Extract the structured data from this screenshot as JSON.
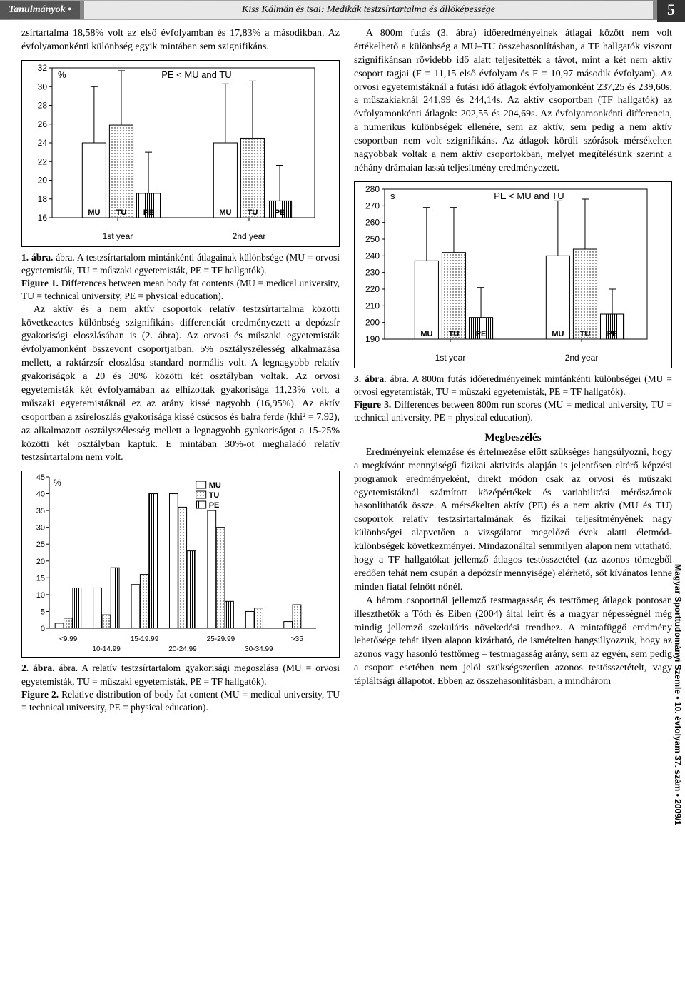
{
  "header": {
    "section_left": "Tanulmányok",
    "title": "Kiss Kálmán és tsai: Medikák testzsírtartalma és állóképessége",
    "page": "5"
  },
  "left_intro": "zsírtartalma 18,58% volt az első évfolyamban és 17,83% a másodikban. Az évfolyamonkénti különbség egyik mintában sem szignifikáns.",
  "fig1": {
    "type": "bar",
    "ylabel": "%",
    "annotation": "PE < MU and TU",
    "y_min": 16,
    "y_max": 32,
    "y_step": 2,
    "groups": [
      "1st year",
      "2nd year"
    ],
    "series": [
      "MU",
      "TU",
      "PE"
    ],
    "values": [
      [
        24.0,
        25.9,
        18.6
      ],
      [
        24.0,
        24.5,
        17.8
      ]
    ],
    "err": [
      [
        6.0,
        5.8,
        4.4
      ],
      [
        6.3,
        6.1,
        3.8
      ]
    ],
    "fills": [
      "white",
      "dots",
      "vstripe"
    ],
    "border_color": "#000000",
    "bg": "#ffffff"
  },
  "caption1_hu": "1. ábra. A testzsírtartalom mintánkénti átlagainak különbsége (MU = orvosi egyetemisták, TU = műszaki egyetemisták, PE = TF hallgatók).",
  "caption1_en": "Figure 1. Differences between mean body fat contents (MU = medical university, TU = technical university, PE = physical education).",
  "left_para2": "Az aktív és a nem aktív csoportok relatív testzsírtartalma közötti következetes különbség szignifikáns differenciát eredményezett a depózsír gyakorisági eloszlásában is (2. ábra). Az orvosi és műszaki egyetemisták évfolyamonként összevont csoportjaiban, 5% osztályszélesség alkalmazása mellett, a raktárzsír eloszlása standard normális volt. A legnagyobb relatív gyakoriságok a 20 és 30% közötti két osztályban voltak. Az orvosi egyetemisták két évfolyamában az elhízottak gyakorisága 11,23% volt, a műszaki egyetemistáknál ez az arány kissé nagyobb (16,95%). Az aktív csoportban a zsíreloszlás gyakorisága kissé csúcsos és balra ferde (khi² = 7,92), az alkalmazott osztályszélesség mellett a legnagyobb gyakoriságot a 15-25% közötti két osztályban kaptuk. E mintában 30%-ot meghaladó relatív testzsírtartalom nem volt.",
  "fig2": {
    "type": "grouped-bar",
    "ylabel": "%",
    "y_min": 0,
    "y_max": 45,
    "y_step": 5,
    "categories": [
      "<9.99",
      "10-14.99",
      "15-19.99",
      "20-24.99",
      "25-29.99",
      "30-34.99",
      ">35"
    ],
    "legend": [
      "MU",
      "TU",
      "PE"
    ],
    "values": [
      [
        1.5,
        3,
        12
      ],
      [
        12,
        4,
        18
      ],
      [
        13,
        16,
        40
      ],
      [
        40,
        36,
        23
      ],
      [
        35,
        30,
        8
      ],
      [
        5,
        6,
        0
      ],
      [
        2,
        7,
        0
      ]
    ],
    "fills": [
      "white",
      "dots",
      "vstripe"
    ],
    "border_color": "#000000"
  },
  "caption2_hu": "2. ábra. A relatív testzsírtartalom gyakorisági megoszlása (MU = orvosi egyetemisták, TU = műszaki egyetemisták, PE = TF hallgatók).",
  "caption2_en": "Figure 2. Relative distribution of body fat content (MU = medical university, TU = technical university, PE = physical education).",
  "right_para1": "A 800m futás (3. ábra) időeredményeinek átlagai között nem volt értékelhető a különbség a MU–TU összehasonlításban, a TF hallgatók viszont szignifikánsan rövidebb idő alatt teljesítették a távot, mint a két nem aktív csoport tagjai (F = 11,15 első évfolyam és F = 10,97 második évfolyam). Az orvosi egyetemistáknál a futási idő átlagok évfolyamonként 237,25 és 239,60s, a műszakiaknál 241,99 és 244,14s. Az aktív csoportban (TF hallgatók) az évfolyamonkénti átlagok: 202,55 és 204,69s. Az évfolyamonkénti differencia, a numerikus különbségek ellenére, sem az aktív, sem pedig a nem aktív csoportban nem volt szignifikáns. Az átlagok körüli szórások mérsékelten nagyobbak voltak a nem aktív csoportokban, melyet megítélésünk szerint a néhány drámaian lassú teljesítmény eredményezett.",
  "fig3": {
    "type": "bar",
    "ylabel": "s",
    "annotation": "PE < MU and TU",
    "y_min": 190,
    "y_max": 280,
    "y_step": 10,
    "groups": [
      "1st year",
      "2nd year"
    ],
    "series": [
      "MU",
      "TU",
      "PE"
    ],
    "values": [
      [
        237,
        242,
        203
      ],
      [
        240,
        244,
        205
      ]
    ],
    "err": [
      [
        32,
        27,
        18
      ],
      [
        33,
        30,
        15
      ]
    ],
    "fills": [
      "white",
      "dots",
      "vstripe"
    ],
    "border_color": "#000000"
  },
  "caption3_hu": "3. ábra. A 800m futás időeredményeinek mintánkénti különbségei (MU = orvosi egyetemisták, TU = műszaki egyetemisták, PE = TF hallgatók).",
  "caption3_en": "Figure 3. Differences between 800m run scores (MU = medical university, TU = technical university, PE = physical education).",
  "discussion_head": "Megbeszélés",
  "right_para2": "Eredményeink elemzése és értelmezése előtt szükséges hangsúlyozni, hogy a megkívánt mennyiségű fizikai aktivitás alapján is jelentősen eltérő képzési programok eredményeként, direkt módon csak az orvosi és műszaki egyetemistáknál számított középértékek és variabilitási mérőszámok hasonlíthatók össze. A mérsékelten aktív (PE) és a nem aktív (MU és TU) csoportok relatív testzsírtartalmának és fizikai teljesítményének nagy különbségei alapvetően a vizsgálatot megelőző évek alatti életmód-különbségek következményei. Mindazonáltal semmilyen alapon nem vitatható, hogy a TF hallgatókat jellemző átlagos testösszetétel (az azonos tömegből eredően tehát nem csupán a depózsír mennyisége) elérhető, sőt kívánatos lenne minden fiatal felnőtt nőnél.",
  "right_para3": "A három csoportnál jellemző testmagasság és testtömeg átlagok pontosan illeszthetők a Tóth és Eiben (2004) által leírt és a magyar népességnél még mindig jellemző szekuláris növekedési trendhez. A mintafüggő eredmény lehetősége tehát ilyen alapon kizárható, de ismételten hangsúlyozzuk, hogy az azonos vagy hasonló testtömeg – testmagasság arány, sem az egyén, sem pedig a csoport esetében nem jelöl szükségszerűen azonos testösszetételt, vagy tápláltsági állapotot. Ebben az összehasonlításban, a mindhárom",
  "side_label": "Magyar Sporttudományi Szemle • 10. évfolyam 37. szám • 2009/1"
}
